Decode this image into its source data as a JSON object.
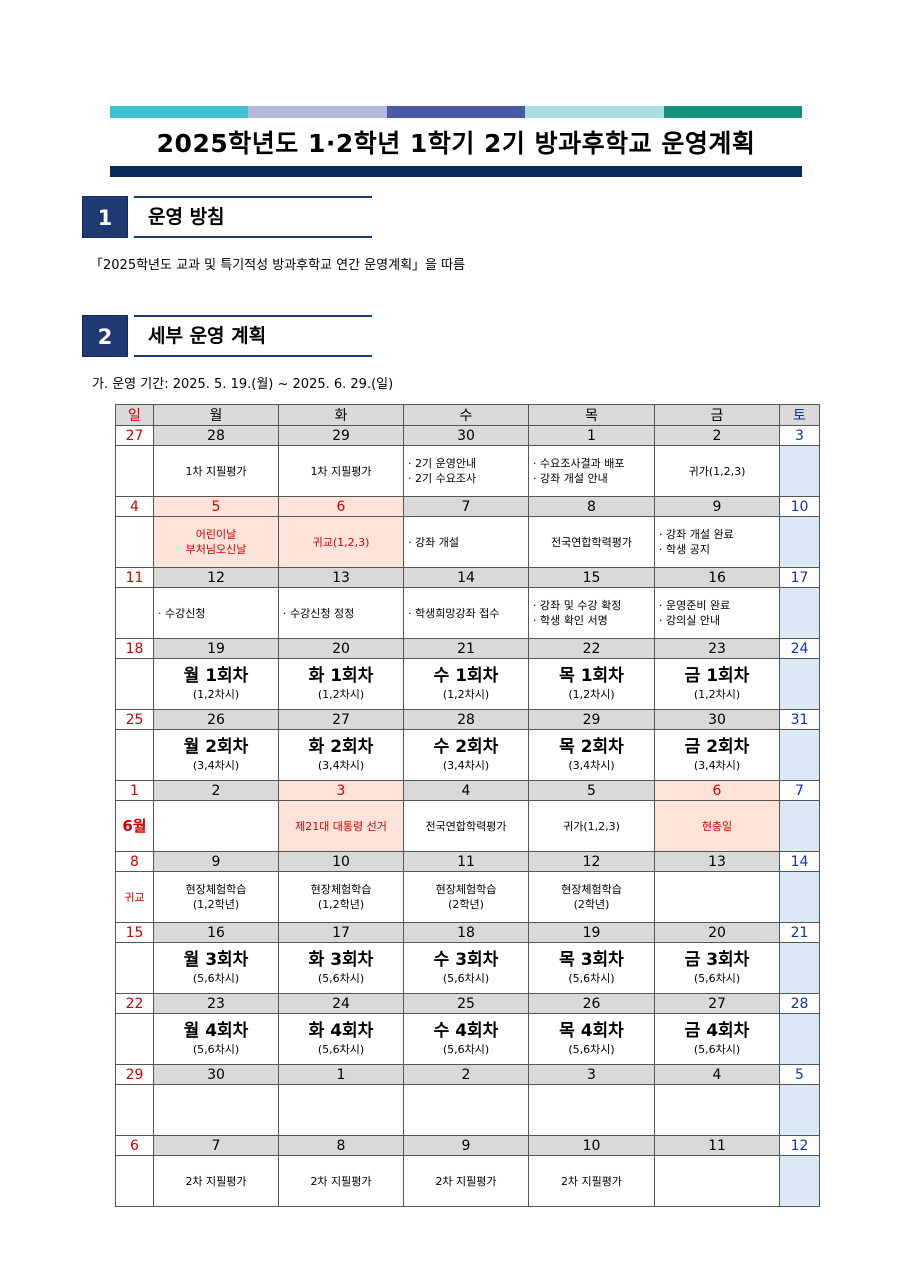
{
  "title": "2025학년도 1·2학년 1학기 2기 방과후학교 운영계획",
  "top_bar_colors": [
    "#40c0d0",
    "#b4b9d8",
    "#4a58a6",
    "#a8dede",
    "#12927e"
  ],
  "section1": {
    "num": "1",
    "title": "운영 방침",
    "text": "「2025학년도 교과 및 특기적성 방과후학교 연간 운영계획」을 따름"
  },
  "section2": {
    "num": "2",
    "title": "세부 운영 계획",
    "period": "가. 운영 기간: 2025. 5. 19.(월) ~ 2025. 6. 29.(일)"
  },
  "calendar": {
    "days": [
      "일",
      "월",
      "화",
      "수",
      "목",
      "금",
      "토"
    ],
    "weeks": [
      {
        "dates": [
          "27",
          "28",
          "29",
          "30",
          "1",
          "2",
          "3"
        ],
        "cells": [
          [],
          [
            "1차 지필평가"
          ],
          [
            "1차 지필평가"
          ],
          [
            "· 2기 운영안내",
            "· 2기 수요조사"
          ],
          [
            "· 수요조사결과 배포",
            "· 강좌 개설 안내"
          ],
          [
            "귀가(1,2,3)"
          ],
          []
        ]
      },
      {
        "dates": [
          "4",
          "5",
          "6",
          "7",
          "8",
          "9",
          "10"
        ],
        "cells": [
          [],
          [
            "어린이날",
            "부처님오신날"
          ],
          [
            "귀교(1,2,3)"
          ],
          [
            "· 강좌 개설"
          ],
          [
            "전국연합학력평가"
          ],
          [
            "· 강좌 개설 완료",
            "· 학생 공지"
          ],
          []
        ]
      },
      {
        "dates": [
          "11",
          "12",
          "13",
          "14",
          "15",
          "16",
          "17"
        ],
        "cells": [
          [],
          [
            "· 수강신청"
          ],
          [
            "· 수강신청 정정"
          ],
          [
            "· 학생희망강좌 접수"
          ],
          [
            "· 강좌 및 수강 확정",
            "· 학생 확인 서명"
          ],
          [
            "· 운영준비 완료",
            "· 강의실 안내"
          ],
          []
        ]
      },
      {
        "dates": [
          "18",
          "19",
          "20",
          "21",
          "22",
          "23",
          "24"
        ],
        "cells": [
          [],
          [
            "월 1회차",
            "(1,2차시)"
          ],
          [
            "화 1회차",
            "(1,2차시)"
          ],
          [
            "수 1회차",
            "(1,2차시)"
          ],
          [
            "목 1회차",
            "(1,2차시)"
          ],
          [
            "금 1회차",
            "(1,2차시)"
          ],
          []
        ]
      },
      {
        "dates": [
          "25",
          "26",
          "27",
          "28",
          "29",
          "30",
          "31"
        ],
        "cells": [
          [],
          [
            "월 2회차",
            "(3,4차시)"
          ],
          [
            "화 2회차",
            "(3,4차시)"
          ],
          [
            "수 2회차",
            "(3,4차시)"
          ],
          [
            "목 2회차",
            "(3,4차시)"
          ],
          [
            "금 2회차",
            "(3,4차시)"
          ],
          []
        ]
      },
      {
        "dates": [
          "1",
          "2",
          "3",
          "4",
          "5",
          "6",
          "7"
        ],
        "cells": [
          [
            "6월"
          ],
          [],
          [
            "제21대 대통령 선거"
          ],
          [
            "전국연합학력평가"
          ],
          [
            "귀가(1,2,3)"
          ],
          [
            "현충일"
          ],
          []
        ]
      },
      {
        "dates": [
          "8",
          "9",
          "10",
          "11",
          "12",
          "13",
          "14"
        ],
        "cells": [
          [
            "귀교"
          ],
          [
            "현장체험학습",
            "(1,2학년)"
          ],
          [
            "현장체험학습",
            "(1,2학년)"
          ],
          [
            "현장체험학습",
            "(2학년)"
          ],
          [
            "현장체험학습",
            "(2학년)"
          ],
          [],
          []
        ]
      },
      {
        "dates": [
          "15",
          "16",
          "17",
          "18",
          "19",
          "20",
          "21"
        ],
        "cells": [
          [],
          [
            "월 3회차",
            "(5,6차시)"
          ],
          [
            "화 3회차",
            "(5,6차시)"
          ],
          [
            "수 3회차",
            "(5,6차시)"
          ],
          [
            "목 3회차",
            "(5,6차시)"
          ],
          [
            "금 3회차",
            "(5,6차시)"
          ],
          []
        ]
      },
      {
        "dates": [
          "22",
          "23",
          "24",
          "25",
          "26",
          "27",
          "28"
        ],
        "cells": [
          [],
          [
            "월 4회차",
            "(5,6차시)"
          ],
          [
            "화 4회차",
            "(5,6차시)"
          ],
          [
            "수 4회차",
            "(5,6차시)"
          ],
          [
            "목 4회차",
            "(5,6차시)"
          ],
          [
            "금 4회차",
            "(5,6차시)"
          ],
          []
        ]
      },
      {
        "dates": [
          "29",
          "30",
          "1",
          "2",
          "3",
          "4",
          "5"
        ],
        "cells": [
          [],
          [],
          [],
          [],
          [],
          [],
          []
        ]
      },
      {
        "dates": [
          "6",
          "7",
          "8",
          "9",
          "10",
          "11",
          "12"
        ],
        "cells": [
          [],
          [
            "2차 지필평가"
          ],
          [
            "2차 지필평가"
          ],
          [
            "2차 지필평가"
          ],
          [
            "2차 지필평가"
          ],
          [],
          []
        ]
      }
    ]
  }
}
